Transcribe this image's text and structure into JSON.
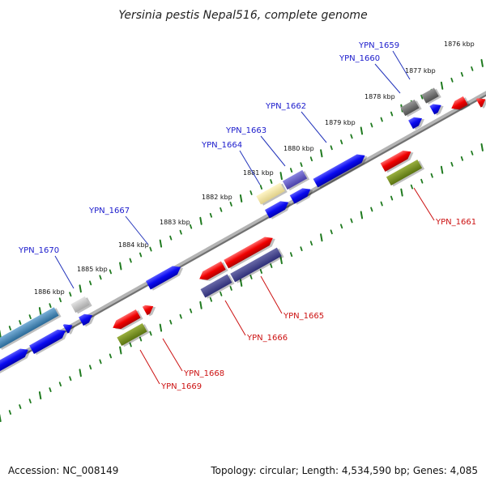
{
  "title": "Yersinia pestis Nepal516, complete genome",
  "footer": {
    "accession": "Accession: NC_008149",
    "summary": "Topology: circular; Length: 4,534,590 bp; Genes: 4,085"
  },
  "colors": {
    "backbone": "#8a8a8a",
    "tick": "#1f7a1f",
    "label_forward": "#1a1acc",
    "label_reverse": "#cc1111",
    "leader_forward": "#2233bb",
    "leader_reverse": "#cc1111"
  },
  "ticks": [
    "1876 kbp",
    "1877 kbp",
    "1878 kbp",
    "1879 kbp",
    "1880 kbp",
    "1881 kbp",
    "1882 kbp",
    "1883 kbp",
    "1884 kbp",
    "1885 kbp",
    "1886 kbp"
  ],
  "gene_labels": [
    {
      "id": "YPN_1659",
      "strand": "forward"
    },
    {
      "id": "YPN_1660",
      "strand": "forward"
    },
    {
      "id": "YPN_1661",
      "strand": "reverse"
    },
    {
      "id": "YPN_1662",
      "strand": "forward"
    },
    {
      "id": "YPN_1663",
      "strand": "forward"
    },
    {
      "id": "YPN_1664",
      "strand": "forward"
    },
    {
      "id": "YPN_1665",
      "strand": "reverse"
    },
    {
      "id": "YPN_1666",
      "strand": "reverse"
    },
    {
      "id": "YPN_1667",
      "strand": "forward"
    },
    {
      "id": "YPN_1668",
      "strand": "reverse"
    },
    {
      "id": "YPN_1669",
      "strand": "reverse"
    },
    {
      "id": "YPN_1670",
      "strand": "forward"
    }
  ]
}
